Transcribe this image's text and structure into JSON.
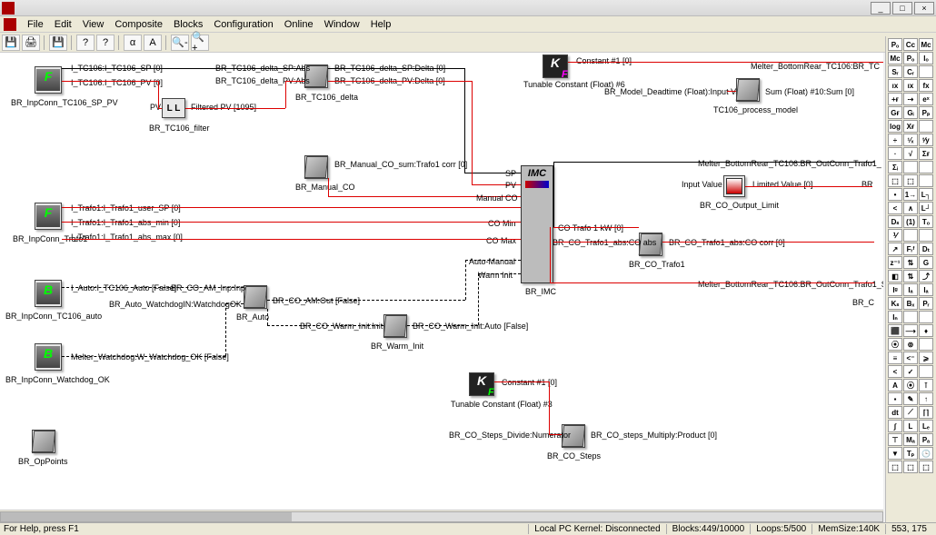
{
  "menu": {
    "file": "File",
    "edit": "Edit",
    "view": "View",
    "composite": "Composite",
    "blocks": "Blocks",
    "configuration": "Configuration",
    "online": "Online",
    "window": "Window",
    "help": "Help"
  },
  "winbtns": {
    "min": "_",
    "max": "□",
    "close": "×"
  },
  "toolbar": {
    "save": "💾",
    "print": "🖨",
    "save2": "💾",
    "help": "?",
    "help2": "?",
    "bold": "α",
    "aa": "A",
    "zoomout": "🔍-",
    "zoomin": "🔍+"
  },
  "status": {
    "hint": "For Help, press F1",
    "kernel": "Local PC Kernel: Disconnected",
    "blocks": "Blocks:449/10000",
    "loops": "Loops:5/500",
    "mem": "MemSize:140K",
    "coords": "553, 175"
  },
  "blocks": {
    "inp_sp_pv": {
      "name": "BR_InpConn_TC106_SP_PV",
      "out1": "I_TC106:I_TC106_SP [0]",
      "out2": "I_TC106:I_TC106_PV [0]"
    },
    "filter": {
      "name": "BR_TC106_filter",
      "in": "PV",
      "out": "Filtered PV [1095]"
    },
    "delta": {
      "name": "BR_TC106_delta",
      "in1": "BR_TC106_delta_SP:Abs",
      "in2": "BR_TC106_delta_PV:Abs",
      "out1": "BR_TC106_delta_SP:Delta [0]",
      "out2": "BR_TC106_delta_PV:Delta [0]"
    },
    "inp_trafo1": {
      "name": "BR_InpConn_Trafo1",
      "out1": "I_Trafo1:I_Trafo1_user_SP [0]",
      "out2": "I_Trafo1:I_Trafo1_abs_min [0]",
      "out3": "I_Trafo1:I_Trafo1_abs_max [0]"
    },
    "inp_auto": {
      "name": "BR_InpConn_TC106_auto",
      "out": "I_Auto:I_TC106_Auto [False]",
      "out2": "BR_Auto_WatchdogIN:WatchdogOK"
    },
    "inp_watchdog": {
      "name": "BR_InpConn_Watchdog_OK",
      "out": "Melter_Watchdog:W_Watchdog_OK [False]"
    },
    "oppoints": {
      "name": "BR_OpPoints"
    },
    "manual_co": {
      "name": "BR_Manual_CO",
      "out": "BR_Manual_CO_sum:Trafo1 corr [0]"
    },
    "auto": {
      "name": "BR_Auto",
      "in": "BR_CO_AM_Inp:Inp",
      "out": "BR_CO_AM:Out [False]"
    },
    "warm_init": {
      "name": "BR_Warm_Init",
      "in": "BR_CO_Warm_Init:Init",
      "out": "BR_CO_Warm_Init:Auto [False]"
    },
    "imc": {
      "name": "BR_IMC",
      "title": "IMC",
      "p_sp": "SP",
      "p_pv": "PV",
      "p_manco": "Manual CO",
      "p_comin": "CO Min",
      "p_comax": "CO Max",
      "p_am": "Auto-Manual",
      "p_warm": "Warm Init",
      "out": "CO Trafo 1 kW [0]"
    },
    "const1": {
      "name": "Tunable Constant (Float) #6",
      "out": "Constant #1 [0]"
    },
    "deadtime": {
      "lbl": "BR_Model_Deadtime (Float):Input Value"
    },
    "process_model": {
      "name": "TC106_process_model",
      "out": "Sum (Float) #10:Sum [0]",
      "top": "Melter_BottomRear_TC106:BR_TC"
    },
    "trafo1_abs": {
      "name": "BR_CO_Trafo1",
      "in": "BR_CO_Trafo1_abs:CO abs",
      "out": "BR_CO_Trafo1_abs:CO corr [0]"
    },
    "outconn_trafo1": {
      "lbl": "Melter_BottomRear_TC106:BR_OutConn_Trafo1_"
    },
    "output_limit": {
      "name": "BR_CO_Output_Limit",
      "in": "Input Value",
      "out": "Limited Value [0]",
      "out2": "BR"
    },
    "outconn_sp": {
      "lbl": "Melter_BottomRear_TC106:BR_OutConn_Trafo1_SP_",
      "lbl2": "BR_C"
    },
    "const2": {
      "name": "Tunable Constant (Float) #3",
      "out": "Constant #1 [0]"
    },
    "steps": {
      "name": "BR_CO_Steps",
      "in": "BR_CO_Steps_Divide:Numerator",
      "out": "BR_CO_steps_Multiply:Product [0]"
    }
  },
  "palette_glyphs": [
    [
      "Pₒ",
      "Cc",
      "Mc"
    ],
    [
      "Mc",
      "Pₒ",
      "Iₒ"
    ],
    [
      "Sᵣ",
      "Cᵣ",
      ""
    ],
    [
      "ıx",
      "ıx",
      "fx"
    ],
    [
      "+ғ",
      "⇢",
      "eˣ"
    ],
    [
      "Gғ",
      "Gᵢ",
      "Pₚ"
    ],
    [
      "log",
      "Xғ",
      ""
    ],
    [
      "÷",
      "¹⁄ₓ",
      "ᵗ⁄y"
    ],
    [
      "∙",
      "√",
      "Σғ"
    ],
    [
      "Σᵢ",
      "",
      ""
    ],
    [
      "⬚",
      "⬚",
      ""
    ],
    [
      "•",
      "1→",
      "L┐"
    ],
    [
      "<",
      "∧",
      "L┘"
    ],
    [
      "Dₛ",
      "(1)",
      "Tₒ"
    ],
    [
      "⅟",
      "",
      ""
    ],
    [
      "↗",
      "Fᵣᶠ",
      "Dₜ"
    ],
    [
      "z⁻¹",
      "⇅",
      "G"
    ],
    [
      "◧",
      "⇅",
      "⤴"
    ],
    [
      "Iᵍ",
      "lₐ",
      "Iₐ"
    ],
    [
      "Kₛ",
      "Bₓ",
      "Pᵣ"
    ],
    [
      "Iₙ",
      "",
      ""
    ],
    [
      "⬛",
      "⟶",
      "♦"
    ],
    [
      "⦿",
      "⊚",
      ""
    ],
    [
      "≡",
      "<⁻",
      "⩾"
    ],
    [
      "<",
      "✓",
      ""
    ],
    [
      "A",
      "⦿",
      "⊺"
    ],
    [
      "▪",
      "✎",
      "↑"
    ],
    [
      "dt",
      "⟋",
      "⌈⌉"
    ],
    [
      "∫",
      "L",
      "Lₑ"
    ],
    [
      "⊤",
      "Mₐ",
      "Pₐ"
    ],
    [
      "▼",
      "Tₚ",
      "🕒"
    ],
    [
      "⬚",
      "⬚",
      "⬚"
    ]
  ]
}
